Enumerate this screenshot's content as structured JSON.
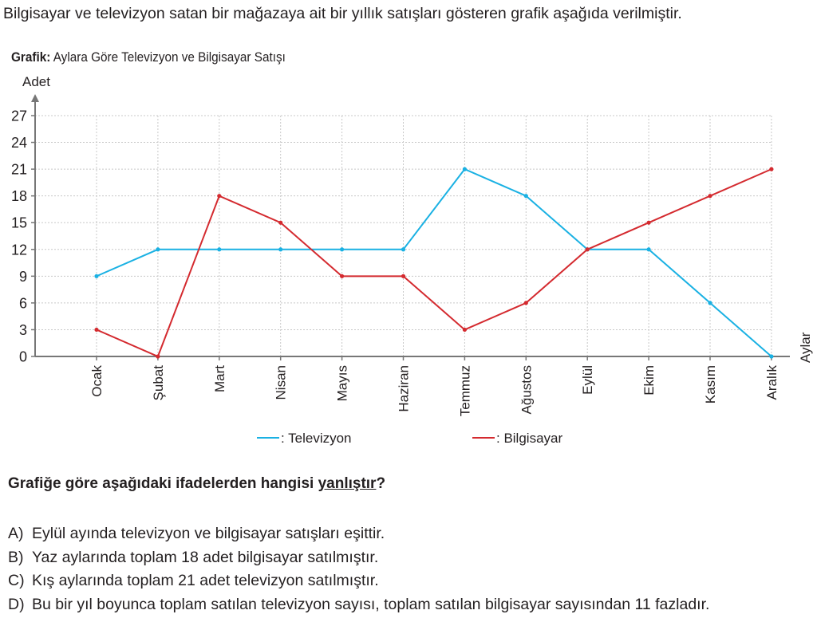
{
  "intro_text": "Bilgisayar ve televizyon satan bir mağazaya ait bir yıllık satışları gösteren grafik aşağıda verilmiştir.",
  "chart_caption": {
    "prefix": "Grafik:",
    "text": "Aylara Göre Televizyon ve Bilgisayar Satışı"
  },
  "chart_data": {
    "type": "line",
    "ylabel": "Adet",
    "xlabel": "Aylar",
    "ylim": [
      0,
      27
    ],
    "yticks": [
      0,
      3,
      6,
      9,
      12,
      15,
      18,
      21,
      24,
      27
    ],
    "grid": true,
    "categories": [
      "Ocak",
      "Şubat",
      "Mart",
      "Nisan",
      "Mayıs",
      "Haziran",
      "Temmuz",
      "Ağustos",
      "Eylül",
      "Ekim",
      "Kasım",
      "Aralık"
    ],
    "series": [
      {
        "name": ": Televizyon",
        "color": "#1ab1e3",
        "values": [
          9,
          12,
          12,
          12,
          12,
          12,
          21,
          18,
          12,
          12,
          6,
          0
        ]
      },
      {
        "name": ": Bilgisayar",
        "color": "#d42a2f",
        "values": [
          3,
          0,
          18,
          15,
          9,
          9,
          3,
          6,
          12,
          15,
          18,
          21
        ]
      }
    ],
    "legend_position": "bottom"
  },
  "question": {
    "before": "Grafiğe göre aşağıdaki ifadelerden hangisi ",
    "underlined": "yanlıştır",
    "after": "?"
  },
  "options": [
    {
      "letter": "A)",
      "text": "Eylül ayında televizyon ve bilgisayar satışları eşittir."
    },
    {
      "letter": "B)",
      "text": "Yaz aylarında toplam 18 adet bilgisayar satılmıştır."
    },
    {
      "letter": "C)",
      "text": "Kış aylarında toplam 21 adet televizyon satılmıştır."
    },
    {
      "letter": "D)",
      "text": "Bu bir yıl boyunca toplam satılan televizyon sayısı, toplam satılan bilgisayar sayısından 11 fazladır."
    }
  ]
}
